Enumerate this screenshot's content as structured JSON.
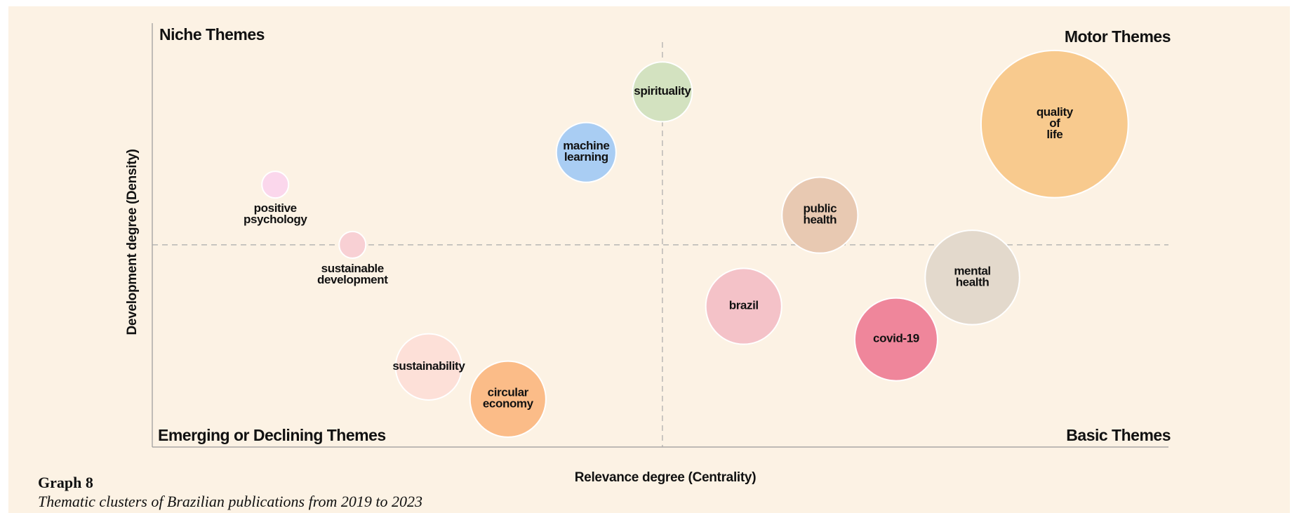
{
  "chart_data": {
    "type": "bubble",
    "x_label": "Relevance degree (Centrality)",
    "y_label": "Development degree (Density)",
    "quadrant_labels": {
      "top_left": "Niche Themes",
      "top_right": "Motor Themes",
      "bottom_left": "Emerging or Declining Themes",
      "bottom_right": "Basic Themes"
    },
    "caption": "Graph 8",
    "subtitle": "Thematic clusters of Brazilian publications from 2019 to 2023",
    "categories": [
      "spirituality",
      "machine learning",
      "positive psychology",
      "sustainable development",
      "sustainability",
      "circular economy",
      "brazil",
      "public health",
      "covid-19",
      "mental health",
      "quality of life"
    ],
    "x": [
      50.2,
      42.7,
      12.1,
      19.7,
      27.2,
      35.0,
      58.2,
      65.7,
      73.2,
      80.7,
      88.8
    ],
    "values": [
      83.8,
      69.5,
      61.9,
      47.7,
      18.9,
      11.3,
      33.2,
      54.7,
      25.4,
      40.0,
      76.2
    ],
    "sizes": [
      13,
      13,
      2.6,
      2.6,
      16,
      21,
      21,
      21,
      25,
      32.5,
      79
    ],
    "colors": [
      "#d3e2c0",
      "#a9cdf3",
      "#fbd7ec",
      "#f8d0d4",
      "#fde0d8",
      "#fbbc88",
      "#f4c2c8",
      "#e8c9b2",
      "#ef869b",
      "#e3d9cc",
      "#f8ca8e"
    ],
    "xlim": [
      0,
      100
    ],
    "ylim": [
      0,
      100
    ],
    "quadrant_lines": {
      "x": 50.2,
      "y": 47.7
    }
  }
}
